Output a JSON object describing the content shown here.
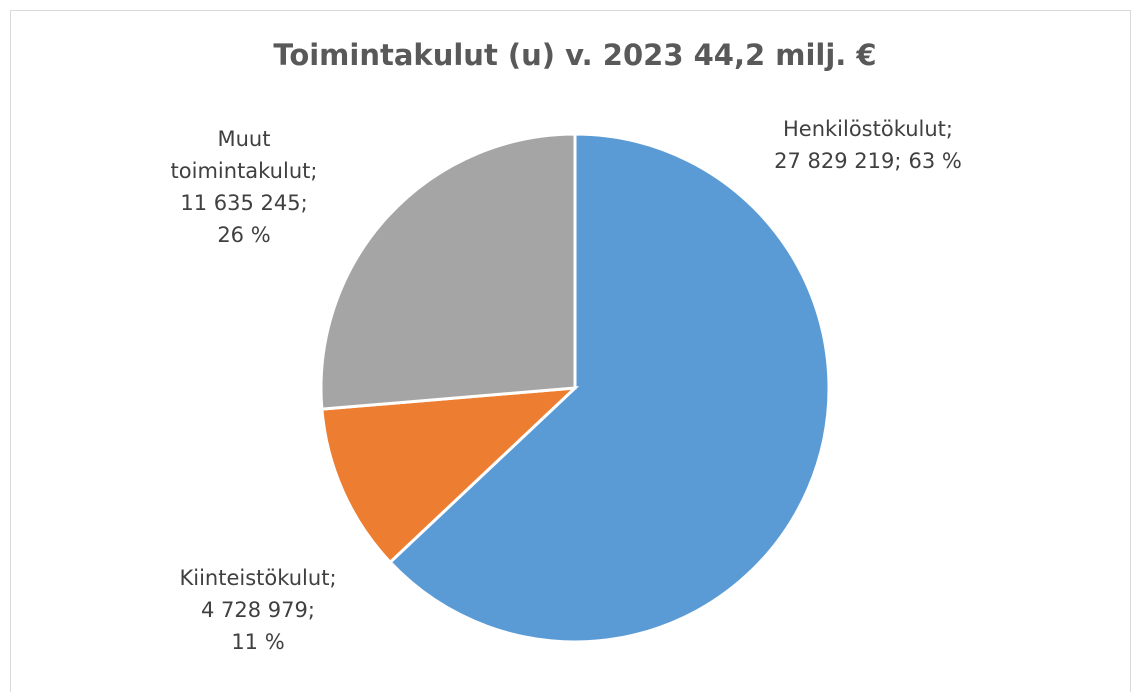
{
  "chart_data": {
    "type": "pie",
    "title": "Toimintakulut (u) v. 2023  44,2 milj. €",
    "categories": [
      "Henkilöstökulut",
      "Kiinteistökulut",
      "Muut toimintakulut"
    ],
    "values": [
      27829219,
      4728979,
      11635245
    ],
    "value_labels": [
      "27 829 219",
      "4 728 979",
      "11 635 245"
    ],
    "percents": [
      63,
      11,
      26
    ],
    "percent_labels": [
      "63 %",
      "11 %",
      "26 %"
    ],
    "label_separator": ";",
    "colors": [
      "#5b9bd5",
      "#ed7d31",
      "#a5a5a5"
    ]
  }
}
